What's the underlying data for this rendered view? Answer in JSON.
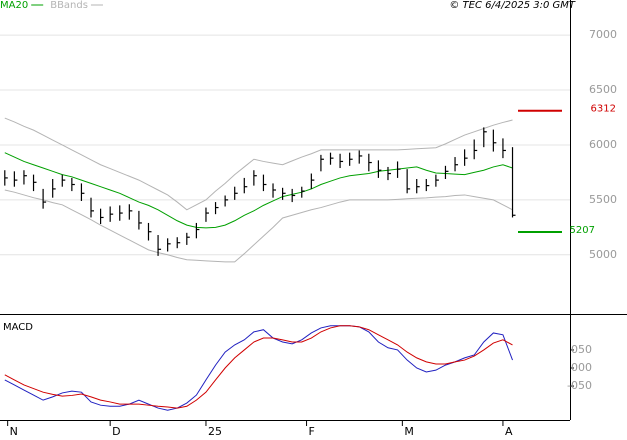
{
  "chart_data": [
    {
      "type": "ohlc",
      "credit": "© TEC 6/4/2025 3:0 GMT",
      "xlim": [
        0,
        59.5
      ],
      "ylim": [
        4470,
        7320
      ],
      "yticks": [
        5000,
        5500,
        6000,
        6500,
        7000
      ],
      "grid": true,
      "bar_color": "#000000",
      "x": [
        0.5,
        1.5,
        2.5,
        3.5,
        4.5,
        5.5,
        6.5,
        7.5,
        8.5,
        9.5,
        10.5,
        11.5,
        12.5,
        13.5,
        14.5,
        15.5,
        16.5,
        17.5,
        18.5,
        19.5,
        20.5,
        21.5,
        22.5,
        23.5,
        24.5,
        25.5,
        26.5,
        27.5,
        28.5,
        29.5,
        30.5,
        31.5,
        32.5,
        33.5,
        34.5,
        35.5,
        36.5,
        37.5,
        38.5,
        39.5,
        40.5,
        41.5,
        42.5,
        43.5,
        44.5,
        45.5,
        46.5,
        47.5,
        48.5,
        49.5,
        50.5,
        51.5,
        52.5,
        53.5
      ],
      "high": [
        5770,
        5760,
        5770,
        5730,
        5600,
        5690,
        5730,
        5700,
        5650,
        5520,
        5420,
        5440,
        5450,
        5460,
        5400,
        5290,
        5180,
        5150,
        5160,
        5200,
        5290,
        5430,
        5480,
        5540,
        5620,
        5700,
        5770,
        5730,
        5650,
        5610,
        5600,
        5620,
        5740,
        5910,
        5930,
        5920,
        5930,
        5950,
        5920,
        5860,
        5800,
        5850,
        5780,
        5690,
        5690,
        5730,
        5810,
        5890,
        5960,
        6050,
        6160,
        6140,
        6060,
        5980
      ],
      "low": [
        5630,
        5620,
        5640,
        5580,
        5420,
        5520,
        5620,
        5580,
        5490,
        5340,
        5280,
        5300,
        5310,
        5320,
        5230,
        5130,
        4990,
        5030,
        5060,
        5090,
        5150,
        5300,
        5370,
        5440,
        5500,
        5560,
        5630,
        5580,
        5520,
        5500,
        5480,
        5520,
        5600,
        5760,
        5820,
        5790,
        5810,
        5830,
        5760,
        5700,
        5680,
        5700,
        5560,
        5560,
        5580,
        5620,
        5690,
        5760,
        5810,
        5870,
        5980,
        5940,
        5880,
        5340
      ],
      "close": [
        5700,
        5680,
        5720,
        5660,
        5480,
        5600,
        5680,
        5640,
        5560,
        5400,
        5340,
        5370,
        5380,
        5400,
        5290,
        5210,
        5050,
        5100,
        5110,
        5160,
        5230,
        5380,
        5430,
        5500,
        5560,
        5620,
        5720,
        5640,
        5590,
        5560,
        5540,
        5580,
        5680,
        5870,
        5880,
        5850,
        5870,
        5900,
        5840,
        5770,
        5740,
        5780,
        5600,
        5620,
        5630,
        5680,
        5760,
        5820,
        5880,
        5950,
        6120,
        6020,
        5950,
        5360
      ],
      "series": [
        {
          "name": "MA20",
          "color": "#00a000",
          "values": [
            5930,
            5890,
            5850,
            5820,
            5790,
            5760,
            5730,
            5710,
            5680,
            5650,
            5620,
            5590,
            5560,
            5520,
            5480,
            5450,
            5410,
            5360,
            5310,
            5270,
            5250,
            5245,
            5250,
            5270,
            5310,
            5360,
            5400,
            5450,
            5490,
            5530,
            5550,
            5570,
            5600,
            5640,
            5670,
            5700,
            5720,
            5730,
            5740,
            5760,
            5770,
            5780,
            5790,
            5800,
            5770,
            5745,
            5740,
            5735,
            5730,
            5750,
            5770,
            5800,
            5820,
            5790
          ]
        },
        {
          "name": "BBands",
          "color": "#b4b4b4",
          "upper": [
            6245,
            6210,
            6170,
            6135,
            6090,
            6045,
            6000,
            5955,
            5910,
            5865,
            5820,
            5785,
            5750,
            5715,
            5680,
            5635,
            5590,
            5545,
            5480,
            5410,
            5455,
            5500,
            5580,
            5650,
            5730,
            5800,
            5870,
            5850,
            5835,
            5820,
            5855,
            5890,
            5920,
            5955,
            5955,
            5955,
            5955,
            5955,
            5955,
            5955,
            5955,
            5955,
            5960,
            5965,
            5970,
            5975,
            6010,
            6050,
            6090,
            6120,
            6150,
            6180,
            6205,
            6227
          ],
          "lower": [
            5590,
            5570,
            5545,
            5520,
            5500,
            5475,
            5455,
            5410,
            5365,
            5320,
            5270,
            5225,
            5180,
            5135,
            5090,
            5045,
            5020,
            5000,
            4975,
            4955,
            4950,
            4945,
            4940,
            4935,
            4935,
            5010,
            5090,
            5170,
            5250,
            5335,
            5360,
            5385,
            5410,
            5430,
            5455,
            5480,
            5500,
            5500,
            5500,
            5500,
            5500,
            5505,
            5510,
            5515,
            5518,
            5525,
            5530,
            5540,
            5545,
            5530,
            5515,
            5500,
            5455,
            5410
          ]
        }
      ],
      "levels": [
        {
          "value": 6312,
          "color": "#d00000"
        },
        {
          "value": 5207,
          "color": "#00a000"
        }
      ]
    },
    {
      "type": "line",
      "title": "MACD",
      "xlim": [
        0,
        59.5
      ],
      "ylim": [
        -144,
        144
      ],
      "yticks": [
        {
          "value": -50,
          "label": "-050"
        },
        {
          "value": 0,
          "label": "000"
        },
        {
          "value": 50,
          "label": "050"
        }
      ],
      "grid": false,
      "xticks": [
        {
          "value": 0.8,
          "label": "N"
        },
        {
          "value": 11.5,
          "label": "D"
        },
        {
          "value": 21.5,
          "label": "25"
        },
        {
          "value": 32,
          "label": "F"
        },
        {
          "value": 42,
          "label": "M"
        },
        {
          "value": 52.5,
          "label": "A"
        }
      ],
      "series": [
        {
          "color": "#2020c0",
          "values": [
            -33,
            -47,
            -61,
            -75,
            -89,
            -80,
            -69,
            -64,
            -67,
            -94,
            -103,
            -106,
            -106,
            -100,
            -89,
            -100,
            -111,
            -117,
            -111,
            -97,
            -75,
            -33,
            8,
            44,
            64,
            78,
            100,
            106,
            83,
            72,
            67,
            78,
            97,
            111,
            117,
            117,
            117,
            114,
            100,
            72,
            56,
            50,
            22,
            0,
            -11,
            -6,
            8,
            17,
            28,
            36,
            72,
            97,
            92,
            22
          ]
        },
        {
          "color": "#d00000",
          "values": [
            -19,
            -33,
            -47,
            -57,
            -67,
            -73,
            -78,
            -76,
            -72,
            -80,
            -89,
            -94,
            -100,
            -100,
            -100,
            -103,
            -106,
            -108,
            -111,
            -106,
            -89,
            -67,
            -33,
            0,
            28,
            50,
            72,
            83,
            83,
            78,
            72,
            72,
            83,
            100,
            111,
            117,
            117,
            114,
            106,
            92,
            78,
            64,
            44,
            28,
            17,
            11,
            11,
            17,
            22,
            33,
            50,
            69,
            78,
            64
          ]
        }
      ]
    }
  ]
}
